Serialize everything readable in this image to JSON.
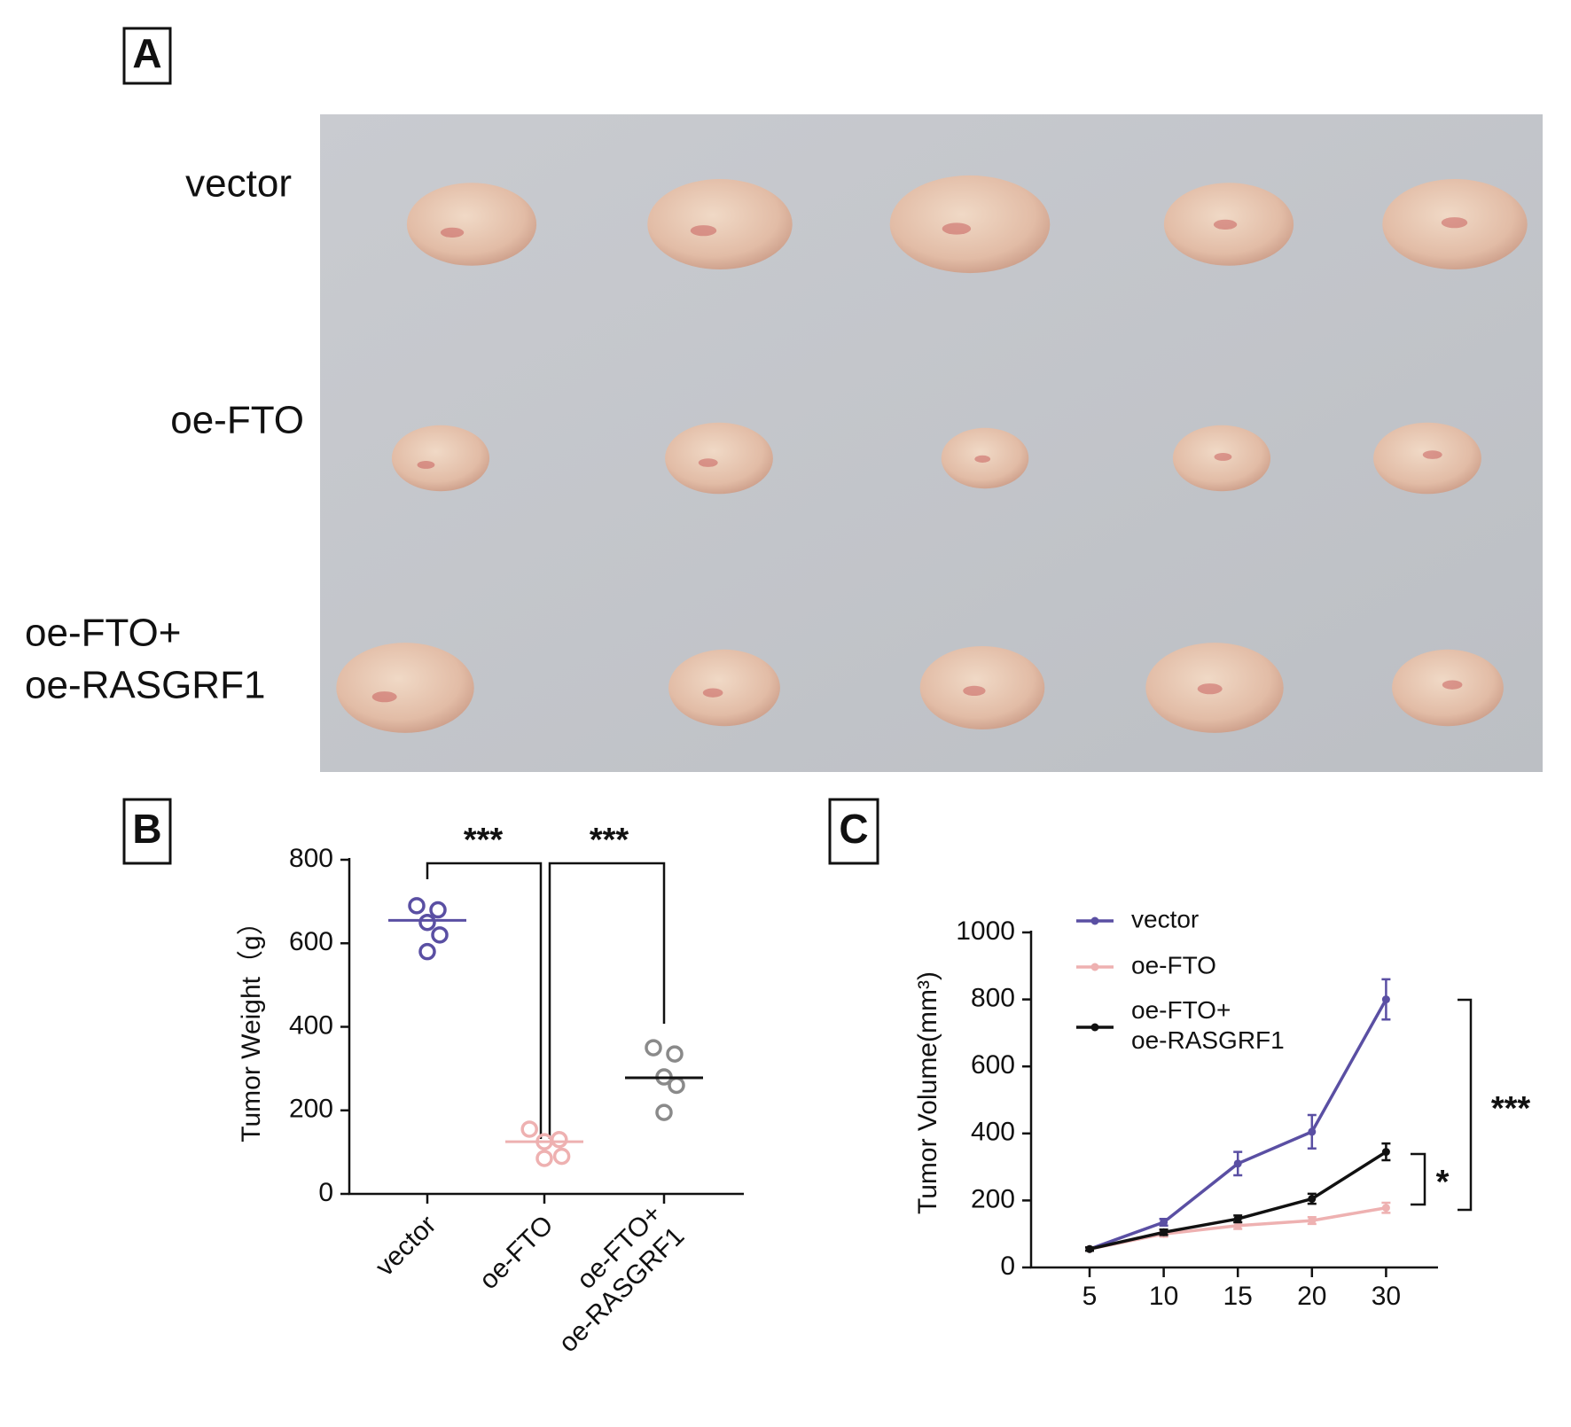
{
  "panels": [
    "A",
    "B",
    "C"
  ],
  "photo_rows": [
    "vector",
    "oe-FTO",
    "oe-FTO+\noe-RASGRF1"
  ],
  "chart_data": [
    {
      "type": "dot",
      "y_label": "Tumor Weight（g）",
      "categories": [
        "vector",
        "oe-FTO",
        "oe-FTO+\noe-RASGRF1"
      ],
      "colors": [
        "#5a4fa3",
        "#eeb1b1",
        "#8a8a8a"
      ],
      "points": [
        [
          690,
          680,
          650,
          620,
          580
        ],
        [
          155,
          130,
          125,
          90,
          85
        ],
        [
          350,
          335,
          280,
          260,
          195
        ]
      ],
      "means": [
        655,
        125,
        278
      ],
      "ylim": [
        0,
        800
      ],
      "yticks": [
        0,
        200,
        400,
        600,
        800
      ],
      "annotations": [
        "***",
        "***"
      ]
    },
    {
      "type": "line",
      "y_label": "Tumor Volume(mm³)",
      "categories": [
        "5",
        "10",
        "15",
        "20",
        "30"
      ],
      "series": [
        {
          "name": "vector",
          "color": "#5a4fa3",
          "values": [
            55,
            135,
            310,
            405,
            800
          ],
          "errors": [
            5,
            10,
            35,
            50,
            60
          ]
        },
        {
          "name": "oe-FTO",
          "color": "#eeb1b1",
          "values": [
            55,
            100,
            125,
            140,
            178
          ],
          "errors": [
            5,
            8,
            10,
            10,
            15
          ]
        },
        {
          "name": "oe-FTO+\noe-RASGRF1",
          "color": "#111111",
          "values": [
            55,
            105,
            145,
            205,
            345
          ],
          "errors": [
            5,
            8,
            10,
            15,
            25
          ]
        }
      ],
      "ylim": [
        0,
        1000
      ],
      "yticks": [
        0,
        200,
        400,
        600,
        800,
        1000
      ],
      "annotations": [
        "***",
        "*"
      ]
    }
  ]
}
